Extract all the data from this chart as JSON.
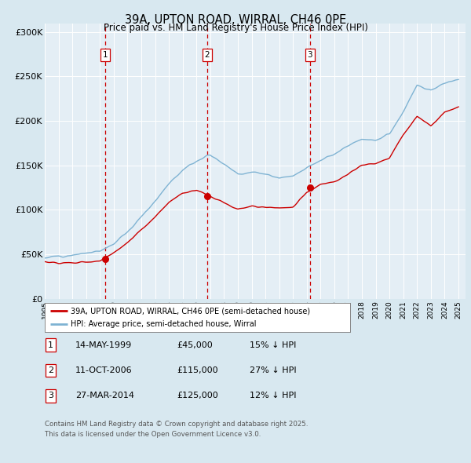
{
  "title_line1": "39A, UPTON ROAD, WIRRAL, CH46 0PE",
  "title_line2": "Price paid vs. HM Land Registry's House Price Index (HPI)",
  "ylim": [
    0,
    310000
  ],
  "yticks": [
    0,
    50000,
    100000,
    150000,
    200000,
    250000,
    300000
  ],
  "ytick_labels": [
    "£0",
    "£50K",
    "£100K",
    "£150K",
    "£200K",
    "£250K",
    "£300K"
  ],
  "sale_dates": [
    1999.37,
    2006.78,
    2014.23
  ],
  "sale_prices": [
    45000,
    115000,
    125000
  ],
  "sale_labels": [
    "1",
    "2",
    "3"
  ],
  "sale_info": [
    [
      "1",
      "14-MAY-1999",
      "£45,000",
      "15% ↓ HPI"
    ],
    [
      "2",
      "11-OCT-2006",
      "£115,000",
      "27% ↓ HPI"
    ],
    [
      "3",
      "27-MAR-2014",
      "£125,000",
      "12% ↓ HPI"
    ]
  ],
  "legend_line1": "39A, UPTON ROAD, WIRRAL, CH46 0PE (semi-detached house)",
  "legend_line2": "HPI: Average price, semi-detached house, Wirral",
  "footer": "Contains HM Land Registry data © Crown copyright and database right 2025.\nThis data is licensed under the Open Government Licence v3.0.",
  "hpi_color": "#7fb3d3",
  "sale_color": "#cc0000",
  "bg_color": "#d8e8f0",
  "plot_bg_color": "#e4eef5",
  "grid_color": "#ffffff",
  "dashed_line_color": "#cc0000",
  "hpi_key_years": [
    1995,
    1996,
    1997,
    1998,
    1999,
    2000,
    2001,
    2002,
    2003,
    2004,
    2005,
    2006,
    2007,
    2008,
    2009,
    2010,
    2011,
    2012,
    2013,
    2014,
    2015,
    2016,
    2017,
    2018,
    2019,
    2020,
    2021,
    2022,
    2023,
    2024,
    2025
  ],
  "hpi_key_values": [
    46000,
    48000,
    49000,
    51000,
    54000,
    62000,
    75000,
    92000,
    110000,
    130000,
    145000,
    155000,
    162000,
    152000,
    140000,
    142000,
    140000,
    135000,
    138000,
    148000,
    155000,
    163000,
    172000,
    180000,
    178000,
    185000,
    210000,
    240000,
    235000,
    242000,
    248000
  ],
  "sale_key_years": [
    1995,
    1996,
    1997,
    1998,
    1999,
    2000,
    2001,
    2002,
    2003,
    2004,
    2005,
    2006,
    2007,
    2008,
    2009,
    2010,
    2011,
    2012,
    2013,
    2014,
    2015,
    2016,
    2017,
    2018,
    2019,
    2020,
    2021,
    2022,
    2023,
    2024,
    2025
  ],
  "sale_key_values": [
    42000,
    40000,
    40000,
    41000,
    42000,
    52000,
    62000,
    78000,
    92000,
    108000,
    118000,
    122000,
    115000,
    108000,
    100000,
    104000,
    103000,
    102000,
    103000,
    120000,
    128000,
    132000,
    140000,
    150000,
    152000,
    158000,
    185000,
    205000,
    195000,
    210000,
    215000
  ]
}
